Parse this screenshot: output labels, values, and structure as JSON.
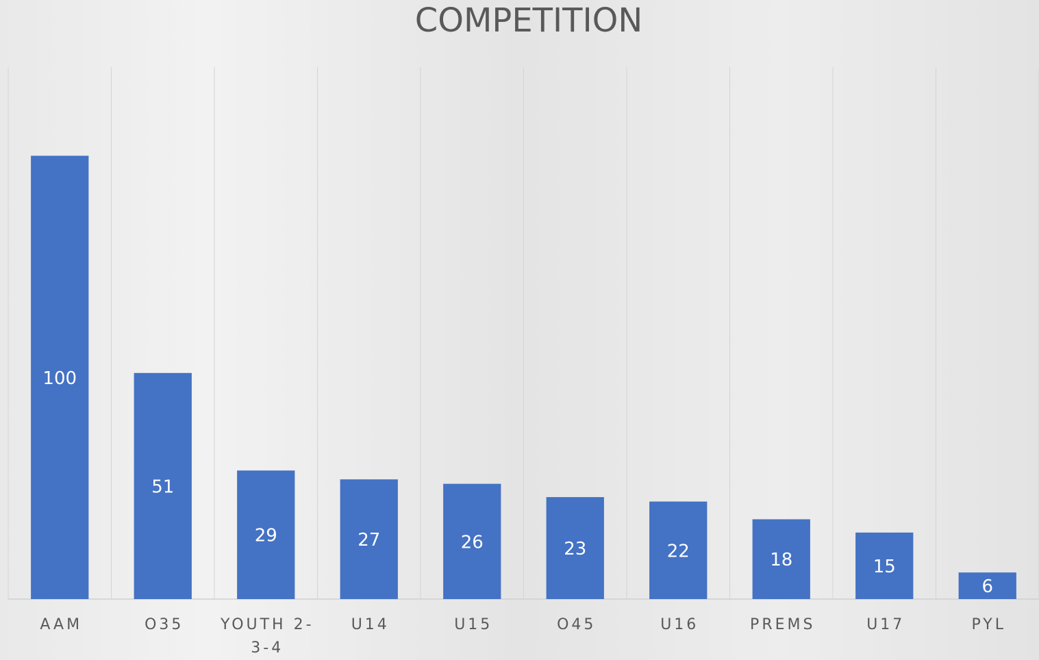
{
  "chart_data": {
    "type": "bar",
    "title": "COMPETITION",
    "categories": [
      "AAM",
      "O35",
      "YOUTH 2-3-4",
      "U14",
      "U15",
      "O45",
      "U16",
      "PREMS",
      "U17",
      "PYL"
    ],
    "values": [
      100,
      51,
      29,
      27,
      26,
      23,
      22,
      18,
      15,
      6
    ],
    "color": "#4472c4",
    "ylim": [
      0,
      120
    ]
  }
}
